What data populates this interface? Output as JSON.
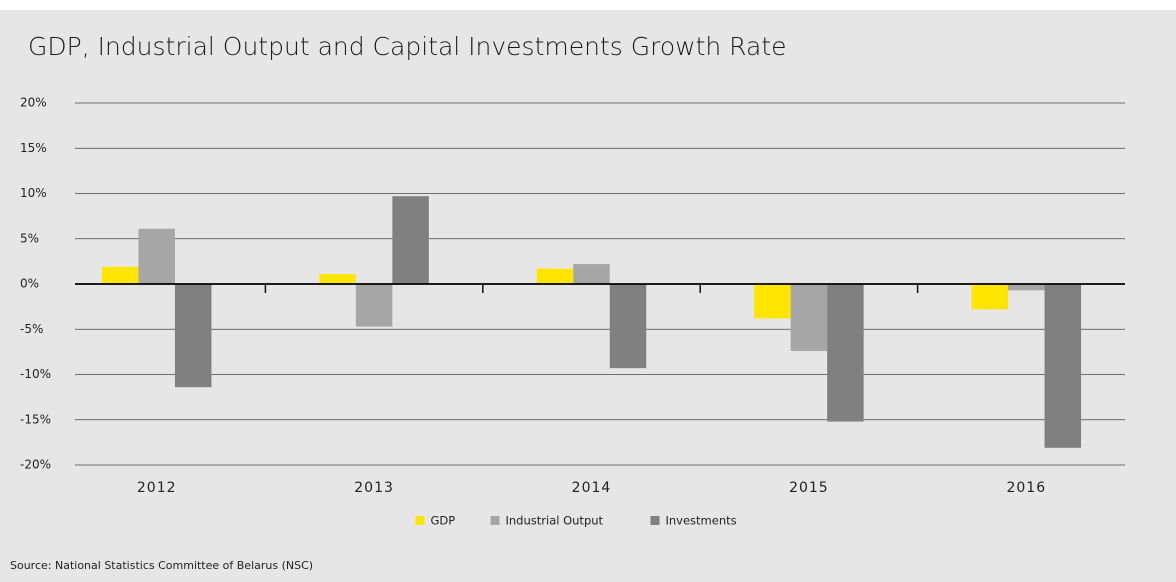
{
  "chart_data": {
    "type": "bar",
    "title": "GDP, Industrial Output and Capital Investments Growth Rate",
    "source": "Source: National Statistics Committee of Belarus (NSC)",
    "categories": [
      "2012",
      "2013",
      "2014",
      "2015",
      "2016"
    ],
    "series": [
      {
        "name": "GDP",
        "color": "#ffe600",
        "values": [
          1.9,
          1.1,
          1.7,
          -3.8,
          -2.8
        ]
      },
      {
        "name": "Industrial Output",
        "color": "#a6a6a6",
        "values": [
          6.1,
          -4.7,
          2.2,
          -7.4,
          -0.7
        ]
      },
      {
        "name": "Investments",
        "color": "#808080",
        "values": [
          -11.4,
          9.7,
          -9.3,
          -15.2,
          -18.1
        ]
      }
    ],
    "ylim": [
      -20,
      20
    ],
    "yticks": [
      {
        "value": -20,
        "label": "-20%"
      },
      {
        "value": -15,
        "label": "-15%"
      },
      {
        "value": -10,
        "label": "-10%"
      },
      {
        "value": -5,
        "label": "-5%"
      },
      {
        "value": 0,
        "label": "0%"
      },
      {
        "value": 5,
        "label": "5%"
      },
      {
        "value": 10,
        "label": "10%"
      },
      {
        "value": 15,
        "label": "15%"
      },
      {
        "value": 20,
        "label": "20%"
      }
    ],
    "grid": true,
    "legend": "bottom"
  }
}
